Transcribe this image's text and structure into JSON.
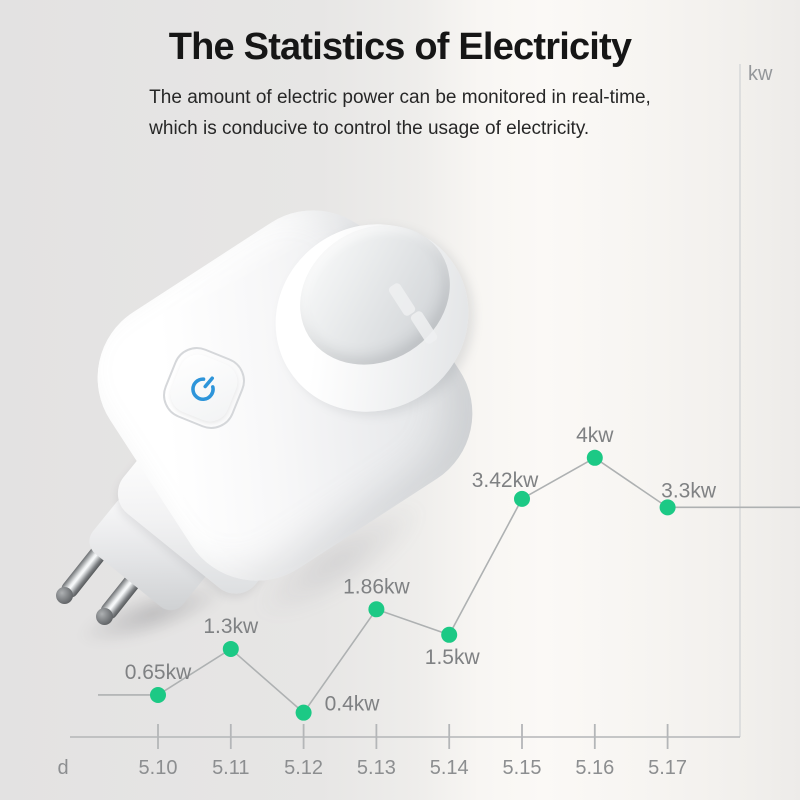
{
  "header": {
    "title": "The Statistics of Electricity",
    "subtitle_line1": "The amount of electric power can be monitored in real-time,",
    "subtitle_line2": "which is conducive to control the usage of electricity."
  },
  "product": {
    "description": "white EU smart plug with power button and two metal pins",
    "power_icon_color": "#2e95da"
  },
  "chart_data": {
    "type": "line",
    "title": "",
    "categories": [
      "5.10",
      "5.11",
      "5.12",
      "5.13",
      "5.14",
      "5.15",
      "5.16",
      "5.17"
    ],
    "values": [
      0.65,
      1.3,
      0.4,
      1.86,
      1.5,
      3.42,
      4,
      3.3
    ],
    "point_labels": [
      "0.65kw",
      "1.3kw",
      "0.4kw",
      "1.86kw",
      "1.5kw",
      "3.42kw",
      "4kw",
      "3.3kw"
    ],
    "label_pos": [
      "above",
      "above",
      "right",
      "above",
      "below",
      "above-left",
      "above",
      "above-right"
    ],
    "xlabel": "d",
    "ylabel": "kw",
    "ylim": [
      0,
      4.8
    ],
    "legend": false,
    "grid": "single right vertical frame line, x-axis with ticks",
    "line_extends_left_of_first_point": true,
    "line_extends_right_of_last_point": true,
    "colors": {
      "point": "#1cc985",
      "line": "#aeb1b2",
      "axis": "#b4b6b8",
      "grid": "#d8dadb",
      "tick_label": "#8c8e90",
      "point_label": "#7f8183",
      "unit_label": "#94979a"
    }
  }
}
